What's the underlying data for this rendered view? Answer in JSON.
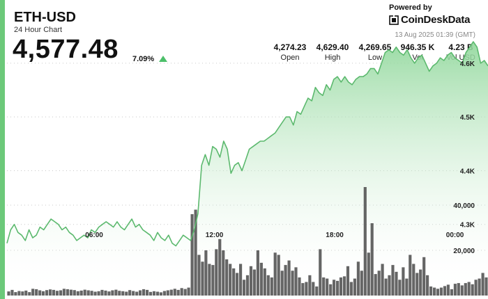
{
  "header": {
    "symbol": "ETH-USD",
    "subtitle": "24 Hour Chart",
    "price": "4,577.48",
    "change": "7.09%",
    "powered_by": "Powered by",
    "brand": "CoinDeskData",
    "timestamp": "13 Aug 2025 01:39 (GMT)"
  },
  "stats": [
    {
      "value": "4,274.23",
      "label": "Open"
    },
    {
      "value": "4,629.40",
      "label": "High"
    },
    {
      "value": "4,269.65",
      "label": "Low"
    },
    {
      "value": "946.35 K",
      "label": "Vol"
    },
    {
      "value": "4.23 B",
      "label": "Vol USD"
    }
  ],
  "colors": {
    "accent": "#6cc97a",
    "line": "#5cb96e",
    "area": "#8fd79a",
    "volume": "#4a4a4a",
    "up": "#4cbf6a"
  },
  "icons": {
    "change_direction": "up-triangle-icon",
    "brand_logo": "coindesk-logo-icon"
  },
  "chart_data": {
    "type": "line",
    "x_ticks": [
      "06:00",
      "12:00",
      "18:00",
      "00:00"
    ],
    "x_tick_positions_hours": [
      6,
      12,
      18,
      24
    ],
    "x_range_hours": [
      1.65,
      25.65
    ],
    "price_ticks": [
      "4.3K",
      "4.4K",
      "4.5K",
      "4.6K"
    ],
    "price_tick_values": [
      4300,
      4400,
      4500,
      4600
    ],
    "ylim": [
      4200,
      4640
    ],
    "volume_ticks": [
      "20,000",
      "40,000"
    ],
    "volume_tick_values": [
      20000,
      40000
    ],
    "volume_max": 100000,
    "grid": "dotted-horizontal",
    "series": [
      {
        "kind": "price",
        "values": [
          4265,
          4290,
          4300,
          4285,
          4280,
          4270,
          4290,
          4275,
          4280,
          4295,
          4290,
          4300,
          4310,
          4305,
          4300,
          4290,
          4295,
          4285,
          4280,
          4270,
          4275,
          4280,
          4275,
          4290,
          4285,
          4295,
          4300,
          4305,
          4300,
          4295,
          4305,
          4295,
          4290,
          4300,
          4310,
          4295,
          4300,
          4290,
          4285,
          4280,
          4270,
          4285,
          4275,
          4270,
          4280,
          4265,
          4260,
          4270,
          4280,
          4275,
          4270,
          4290,
          4320,
          4410,
          4430,
          4410,
          4445,
          4440,
          4425,
          4455,
          4440,
          4395,
          4410,
          4415,
          4400,
          4420,
          4440,
          4445,
          4450,
          4455,
          4455,
          4460,
          4465,
          4470,
          4480,
          4490,
          4500,
          4500,
          4485,
          4510,
          4505,
          4520,
          4535,
          4530,
          4555,
          4545,
          4540,
          4560,
          4550,
          4570,
          4575,
          4565,
          4575,
          4565,
          4560,
          4570,
          4575,
          4575,
          4580,
          4590,
          4590,
          4580,
          4600,
          4620,
          4625,
          4620,
          4630,
          4620,
          4615,
          4625,
          4610,
          4600,
          4610,
          4615,
          4600,
          4585,
          4595,
          4600,
          4610,
          4605,
          4615,
          4620,
          4610,
          4605,
          4600,
          4620,
          4630,
          4640,
          4630,
          4600,
          4605,
          4595
        ]
      },
      {
        "kind": "volume",
        "values": [
          1800,
          2500,
          1500,
          2000,
          1800,
          2200,
          1500,
          3000,
          2800,
          2300,
          1900,
          2400,
          2700,
          2500,
          2100,
          2300,
          3000,
          2800,
          2600,
          2400,
          1900,
          2200,
          2600,
          2300,
          2100,
          1700,
          1900,
          2500,
          2200,
          1800,
          2300,
          2600,
          2100,
          1900,
          1700,
          2400,
          2000,
          1700,
          2300,
          2800,
          2500,
          1600,
          1900,
          1700,
          1400,
          2000,
          2300,
          2600,
          3000,
          2500,
          3300,
          2900,
          3500,
          36000,
          38000,
          18000,
          15000,
          20000,
          14000,
          13500,
          20500,
          25000,
          20000,
          16000,
          14000,
          12000,
          10000,
          14000,
          7000,
          9000,
          13000,
          11500,
          20000,
          14500,
          12000,
          9000,
          8000,
          19000,
          18000,
          11000,
          13500,
          15500,
          11000,
          12500,
          8000,
          5500,
          6000,
          9000,
          6000,
          4000,
          20500,
          8000,
          7500,
          5000,
          7000,
          6500,
          8000,
          8500,
          13000,
          6000,
          7500,
          15000,
          11000,
          48000,
          19000,
          32000,
          9500,
          11000,
          14000,
          7500,
          9000,
          13500,
          10500,
          7000,
          12500,
          7500,
          18000,
          14000,
          10000,
          11500,
          17000,
          9000,
          4000,
          3500,
          3000,
          3500,
          4200,
          4800,
          2800,
          5200,
          5500,
          4500,
          5500,
          6000,
          5000,
          7000,
          7500,
          10000,
          8000
        ]
      }
    ]
  }
}
